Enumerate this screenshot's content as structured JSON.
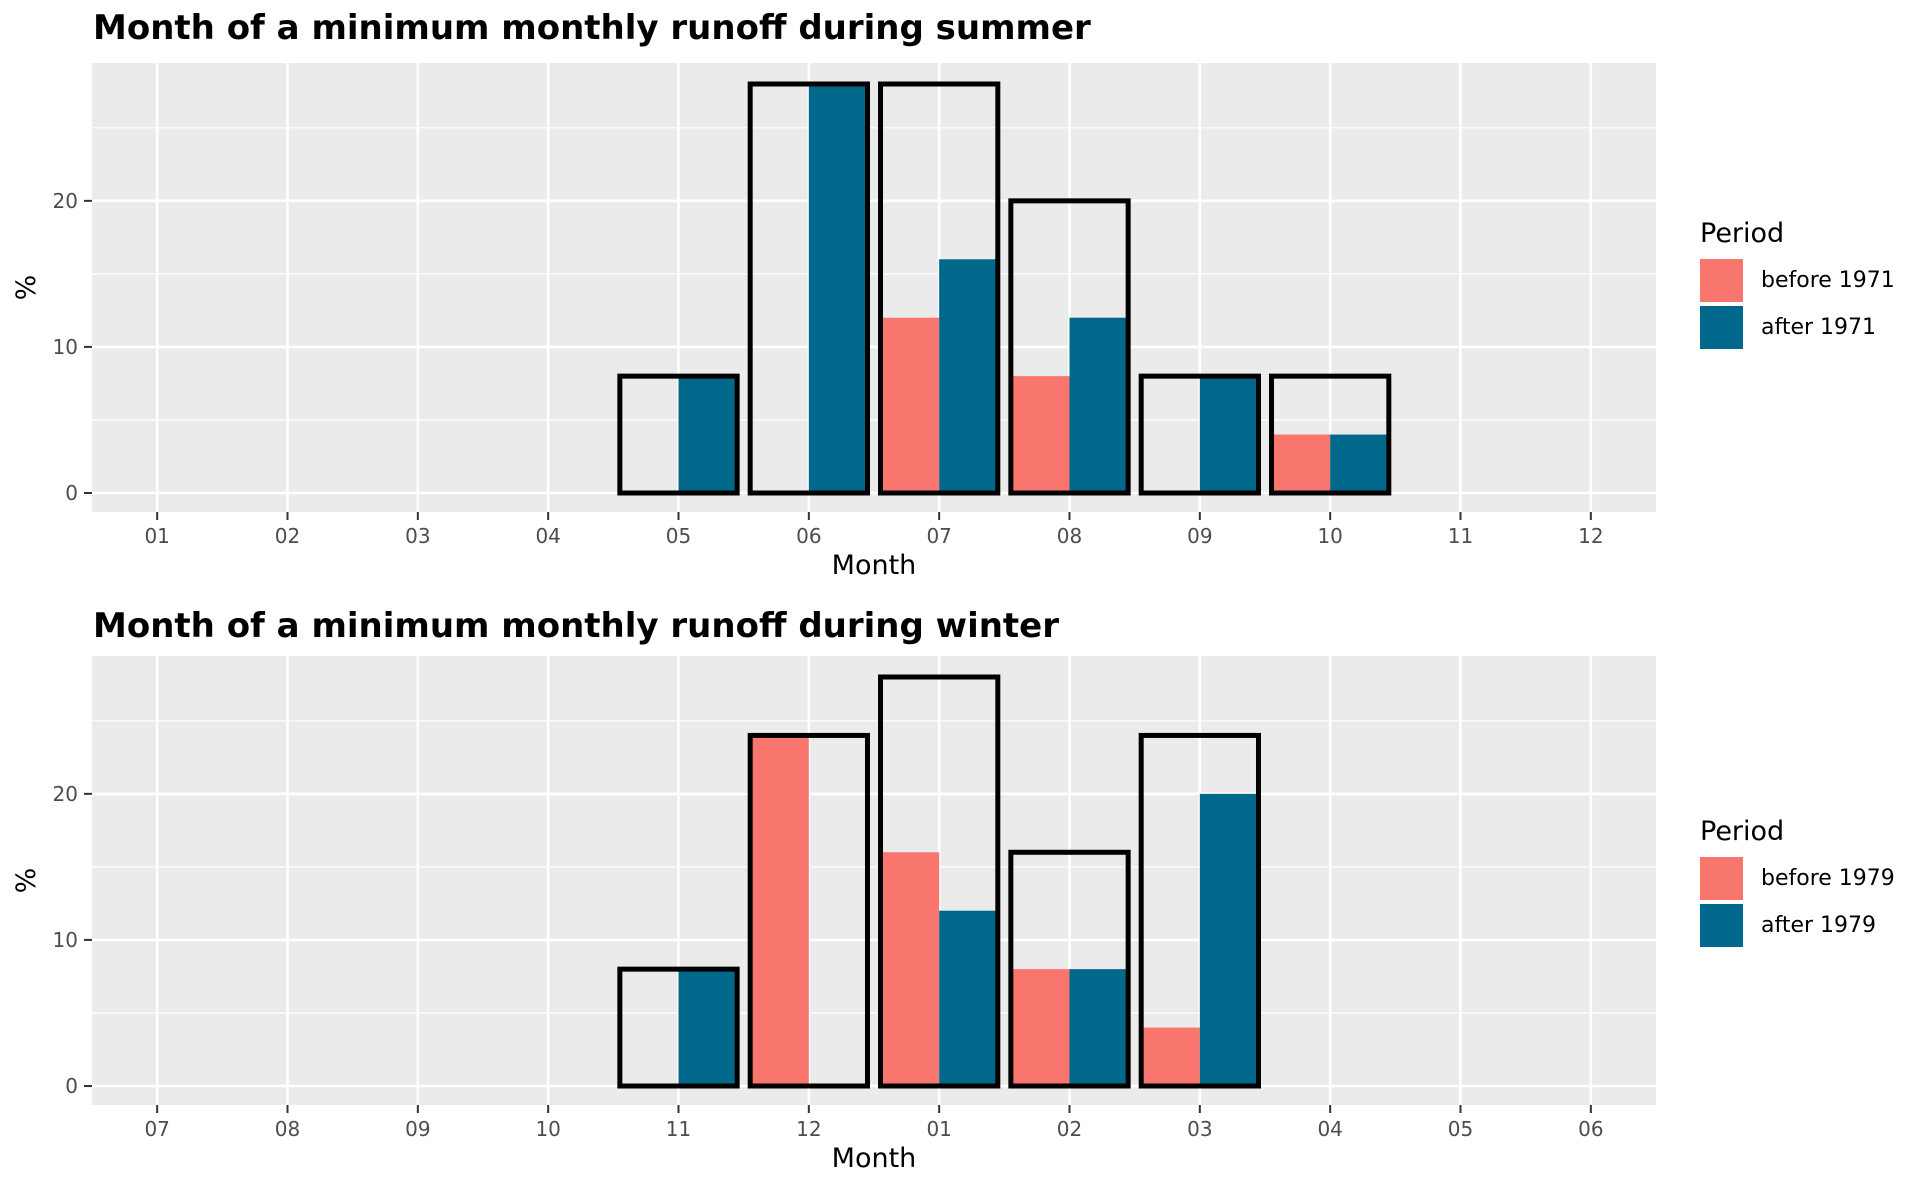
{
  "chart_data": [
    {
      "type": "bar",
      "title": "Month of a minimum monthly runoff during summer",
      "xlabel": "Month",
      "ylabel": "%",
      "ylim": [
        0,
        28
      ],
      "yticks": [
        0,
        10,
        20
      ],
      "grid": true,
      "legend_position": "right",
      "legend_title": "Period",
      "categories": [
        "01",
        "02",
        "03",
        "04",
        "05",
        "06",
        "07",
        "08",
        "09",
        "10",
        "11",
        "12"
      ],
      "series": [
        {
          "name": "before 1971",
          "color": "#F8766D",
          "values": [
            0,
            0,
            0,
            0,
            0,
            0,
            12,
            8,
            0,
            4,
            0,
            0
          ]
        },
        {
          "name": "after 1971",
          "color": "#00688B",
          "values": [
            0,
            0,
            0,
            0,
            8,
            28,
            16,
            12,
            8,
            4,
            0,
            0
          ]
        }
      ],
      "outline_totals": [
        0,
        0,
        0,
        0,
        8,
        28,
        28,
        20,
        8,
        8,
        0,
        0
      ]
    },
    {
      "type": "bar",
      "title": "Month of a minimum monthly runoff during winter",
      "xlabel": "Month",
      "ylabel": "%",
      "ylim": [
        0,
        28
      ],
      "yticks": [
        0,
        10,
        20
      ],
      "grid": true,
      "legend_position": "right",
      "legend_title": "Period",
      "categories": [
        "07",
        "08",
        "09",
        "10",
        "11",
        "12",
        "01",
        "02",
        "03",
        "04",
        "05",
        "06"
      ],
      "series": [
        {
          "name": "before 1979",
          "color": "#F8766D",
          "values": [
            0,
            0,
            0,
            0,
            0,
            24,
            16,
            8,
            4,
            0,
            0,
            0
          ]
        },
        {
          "name": "after 1979",
          "color": "#00688B",
          "values": [
            0,
            0,
            0,
            0,
            8,
            0,
            12,
            8,
            20,
            0,
            0,
            0
          ]
        }
      ],
      "outline_totals": [
        0,
        0,
        0,
        0,
        8,
        24,
        28,
        16,
        24,
        0,
        0,
        0
      ]
    }
  ]
}
